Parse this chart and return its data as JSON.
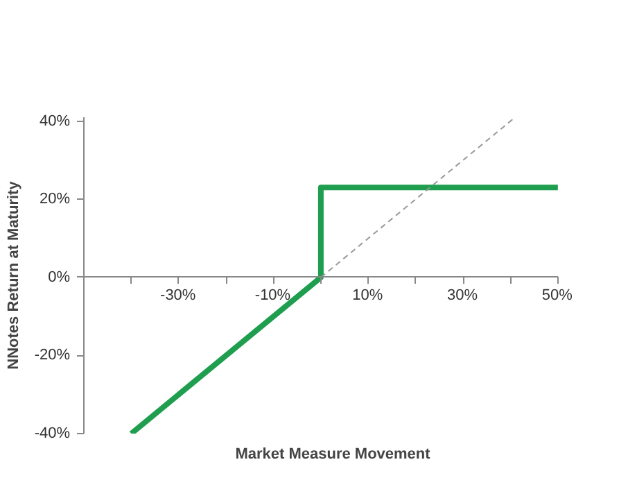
{
  "chart_data": {
    "type": "line",
    "xlabel": "Market Measure Movement",
    "ylabel": "NNotes Return at Maturity",
    "series": [
      {
        "x": [
          -40,
          0,
          0,
          50
        ],
        "values": [
          -40,
          0,
          23,
          23
        ],
        "color": "#1e9e4e",
        "line_style": "solid"
      },
      {
        "x": [
          0,
          41
        ],
        "values": [
          0,
          41
        ],
        "color": "#999999",
        "line_style": "dashed"
      }
    ],
    "xlim": [
      -50,
      50
    ],
    "ylim": [
      -40,
      41
    ],
    "xticks": [
      {
        "value": -40,
        "label": null
      },
      {
        "value": -30,
        "label": "-30%"
      },
      {
        "value": -20,
        "label": null
      },
      {
        "value": -10,
        "label": "-10%"
      },
      {
        "value": 0,
        "label": null
      },
      {
        "value": 10,
        "label": "10%"
      },
      {
        "value": 20,
        "label": null
      },
      {
        "value": 30,
        "label": "30%"
      },
      {
        "value": 40,
        "label": null
      },
      {
        "value": 50,
        "label": "50%"
      }
    ],
    "yticks": [
      {
        "value": -40,
        "label": "-40%"
      },
      {
        "value": -20,
        "label": "-20%"
      },
      {
        "value": 0,
        "label": "0%"
      },
      {
        "value": 20,
        "label": "20%"
      },
      {
        "value": 40,
        "label": "40%"
      }
    ],
    "grid": false,
    "marker": "none"
  }
}
